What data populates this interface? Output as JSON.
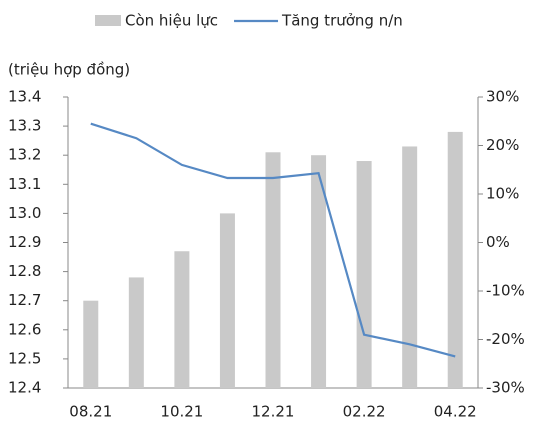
{
  "chart_data": {
    "type": "bar-line",
    "unit_label": "(triệu hợp đồng)",
    "categories": [
      "08.21",
      null,
      "10.21",
      null,
      "12.21",
      null,
      "02.22",
      null,
      "04.22"
    ],
    "series": [
      {
        "name": "Còn hiệu lực",
        "color": "#c9c9c9",
        "type": "bar",
        "values": [
          12.7,
          12.78,
          12.87,
          13.0,
          13.21,
          13.2,
          13.18,
          13.23,
          13.28
        ]
      },
      {
        "name": "Tăng trưởng n/n",
        "color": "#5689c4",
        "type": "line",
        "axis": "y2",
        "values": [
          24.5,
          21.5,
          16,
          13.3,
          13.3,
          14.3,
          -19,
          -21,
          -23.5
        ]
      }
    ],
    "ylim": [
      12.4,
      13.4
    ],
    "yticks": [
      12.4,
      12.5,
      12.6,
      12.7,
      12.8,
      12.9,
      {
        "value": 13,
        "label": "13.0"
      },
      13.1,
      13.2,
      13.3,
      13.4
    ],
    "y2lim": [
      -30,
      30
    ],
    "y2ticks": [
      {
        "value": -30,
        "label": "-30%"
      },
      {
        "value": -20,
        "label": "-20%"
      },
      {
        "value": -10,
        "label": "-10%"
      },
      {
        "value": 0,
        "label": "0%"
      },
      {
        "value": 10,
        "label": "10%"
      },
      {
        "value": 20,
        "label": "20%"
      },
      {
        "value": 30,
        "label": "30%"
      }
    ],
    "grid": false,
    "legend": "top"
  }
}
